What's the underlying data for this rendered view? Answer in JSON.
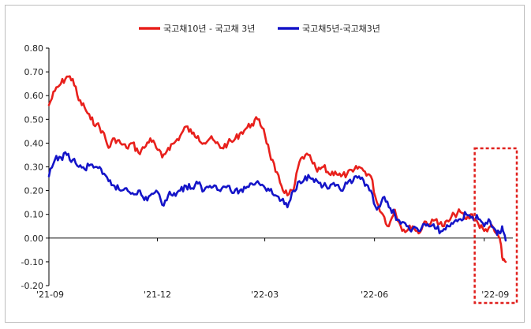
{
  "chart_data": {
    "type": "line",
    "title": "",
    "xlabel": "",
    "ylabel": "",
    "ylim": [
      -0.2,
      0.8
    ],
    "y_ticks": [
      "0.80",
      "0.70",
      "0.60",
      "0.50",
      "0.40",
      "0.30",
      "0.20",
      "0.10",
      "0.00",
      "-0.10",
      "-0.20"
    ],
    "x_ticks": [
      "'21-09",
      "'21-12",
      "'22-03",
      "'22-06",
      "'22-09"
    ],
    "legend_position": "top",
    "grid": false,
    "highlight_box": {
      "x_from": "2022-08-24",
      "x_to": "2022-09-30",
      "color": "#e0201d",
      "style": "dashed"
    },
    "series": [
      {
        "name": "국고채10년 - 국고채 3년",
        "color": "#e8201c",
        "x": [
          "2021-09-01",
          "2021-09-06",
          "2021-09-11",
          "2021-09-16",
          "2021-09-21",
          "2021-09-26",
          "2021-10-01",
          "2021-10-06",
          "2021-10-11",
          "2021-10-16",
          "2021-10-21",
          "2021-10-26",
          "2021-10-31",
          "2021-11-05",
          "2021-11-10",
          "2021-11-15",
          "2021-11-20",
          "2021-11-25",
          "2021-11-30",
          "2021-12-05",
          "2021-12-10",
          "2021-12-15",
          "2021-12-20",
          "2021-12-25",
          "2021-12-30",
          "2022-01-04",
          "2022-01-09",
          "2022-01-14",
          "2022-01-19",
          "2022-01-24",
          "2022-01-29",
          "2022-02-03",
          "2022-02-08",
          "2022-02-13",
          "2022-02-18",
          "2022-02-23",
          "2022-02-28",
          "2022-03-05",
          "2022-03-10",
          "2022-03-15",
          "2022-03-20",
          "2022-03-25",
          "2022-03-30",
          "2022-04-04",
          "2022-04-09",
          "2022-04-14",
          "2022-04-19",
          "2022-04-24",
          "2022-04-29",
          "2022-05-04",
          "2022-05-09",
          "2022-05-14",
          "2022-05-19",
          "2022-05-24",
          "2022-05-29",
          "2022-06-03",
          "2022-06-08",
          "2022-06-13",
          "2022-06-18",
          "2022-06-23",
          "2022-06-28",
          "2022-07-03",
          "2022-07-08",
          "2022-07-13",
          "2022-07-18",
          "2022-07-23",
          "2022-07-28",
          "2022-08-02",
          "2022-08-07",
          "2022-08-12",
          "2022-08-17",
          "2022-08-22",
          "2022-08-27",
          "2022-09-01",
          "2022-09-06",
          "2022-09-11",
          "2022-09-14",
          "2022-09-16",
          "2022-09-19"
        ],
        "values": [
          0.56,
          0.62,
          0.65,
          0.68,
          0.67,
          0.58,
          0.55,
          0.5,
          0.48,
          0.45,
          0.38,
          0.42,
          0.4,
          0.38,
          0.4,
          0.36,
          0.38,
          0.42,
          0.38,
          0.34,
          0.38,
          0.4,
          0.43,
          0.47,
          0.44,
          0.43,
          0.4,
          0.42,
          0.4,
          0.38,
          0.4,
          0.41,
          0.44,
          0.46,
          0.48,
          0.5,
          0.46,
          0.36,
          0.28,
          0.22,
          0.18,
          0.2,
          0.32,
          0.35,
          0.33,
          0.28,
          0.3,
          0.27,
          0.28,
          0.26,
          0.27,
          0.28,
          0.3,
          0.28,
          0.26,
          0.15,
          0.1,
          0.05,
          0.12,
          0.05,
          0.03,
          0.05,
          0.02,
          0.07,
          0.06,
          0.08,
          0.05,
          0.07,
          0.1,
          0.11,
          0.08,
          0.1,
          0.06,
          0.03,
          0.05,
          0.02,
          0.0,
          -0.08,
          -0.1
        ]
      },
      {
        "name": "국고채5년-국고채3년",
        "color": "#1414c8",
        "x": [
          "2021-09-01",
          "2021-09-06",
          "2021-09-11",
          "2021-09-16",
          "2021-09-21",
          "2021-09-26",
          "2021-10-01",
          "2021-10-06",
          "2021-10-11",
          "2021-10-16",
          "2021-10-21",
          "2021-10-26",
          "2021-10-31",
          "2021-11-05",
          "2021-11-10",
          "2021-11-15",
          "2021-11-20",
          "2021-11-25",
          "2021-11-30",
          "2021-12-05",
          "2021-12-10",
          "2021-12-15",
          "2021-12-20",
          "2021-12-25",
          "2021-12-30",
          "2022-01-04",
          "2022-01-09",
          "2022-01-14",
          "2022-01-19",
          "2022-01-24",
          "2022-01-29",
          "2022-02-03",
          "2022-02-08",
          "2022-02-13",
          "2022-02-18",
          "2022-02-23",
          "2022-02-28",
          "2022-03-05",
          "2022-03-10",
          "2022-03-15",
          "2022-03-20",
          "2022-03-25",
          "2022-03-30",
          "2022-04-04",
          "2022-04-09",
          "2022-04-14",
          "2022-04-19",
          "2022-04-24",
          "2022-04-29",
          "2022-05-04",
          "2022-05-09",
          "2022-05-14",
          "2022-05-19",
          "2022-05-24",
          "2022-05-29",
          "2022-06-03",
          "2022-06-08",
          "2022-06-13",
          "2022-06-18",
          "2022-06-23",
          "2022-06-28",
          "2022-07-03",
          "2022-07-08",
          "2022-07-13",
          "2022-07-18",
          "2022-07-23",
          "2022-07-28",
          "2022-08-02",
          "2022-08-07",
          "2022-08-12",
          "2022-08-17",
          "2022-08-22",
          "2022-08-27",
          "2022-09-01",
          "2022-09-06",
          "2022-09-11",
          "2022-09-14",
          "2022-09-16",
          "2022-09-19"
        ],
        "values": [
          0.26,
          0.33,
          0.34,
          0.35,
          0.33,
          0.3,
          0.29,
          0.31,
          0.3,
          0.27,
          0.24,
          0.22,
          0.2,
          0.21,
          0.19,
          0.2,
          0.16,
          0.18,
          0.2,
          0.14,
          0.18,
          0.19,
          0.2,
          0.22,
          0.21,
          0.23,
          0.2,
          0.22,
          0.22,
          0.21,
          0.22,
          0.19,
          0.2,
          0.21,
          0.23,
          0.24,
          0.22,
          0.2,
          0.18,
          0.16,
          0.13,
          0.2,
          0.24,
          0.26,
          0.25,
          0.24,
          0.22,
          0.21,
          0.22,
          0.2,
          0.23,
          0.24,
          0.26,
          0.22,
          0.2,
          0.12,
          0.17,
          0.13,
          0.1,
          0.06,
          0.05,
          0.04,
          0.03,
          0.06,
          0.05,
          0.04,
          0.03,
          0.05,
          0.07,
          0.08,
          0.1,
          0.09,
          0.08,
          0.05,
          0.07,
          0.03,
          0.02,
          0.05,
          -0.01
        ]
      }
    ]
  }
}
